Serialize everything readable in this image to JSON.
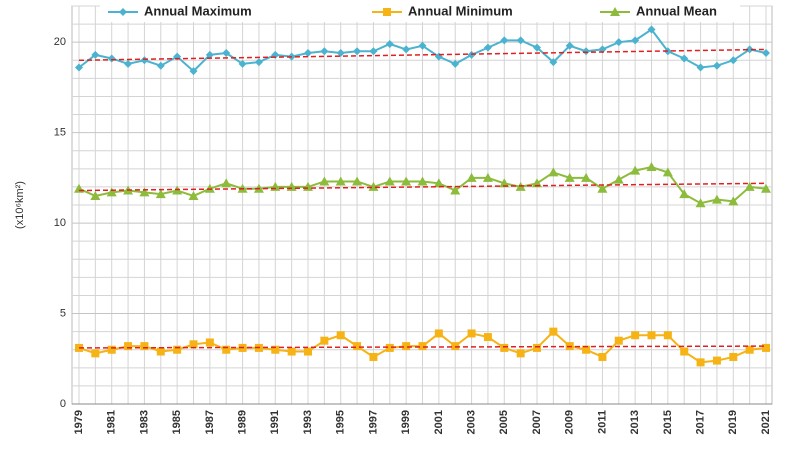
{
  "chart_data": {
    "type": "line",
    "y_label": "(x10⁶km²)",
    "categories": [
      "1979",
      null,
      "1981",
      null,
      "1983",
      null,
      "1985",
      null,
      "1987",
      null,
      "1989",
      null,
      "1991",
      null,
      "1993",
      null,
      "1995",
      null,
      "1997",
      null,
      "1999",
      null,
      "2001",
      null,
      "2003",
      null,
      "2005",
      null,
      "2007",
      null,
      "2009",
      null,
      "2011",
      null,
      "2013",
      null,
      "2015",
      null,
      "2017",
      null,
      "2019",
      null,
      "2021"
    ],
    "series": [
      {
        "name": "Annual Maximum",
        "color": "#4bb3cf",
        "marker": "diamond",
        "values": [
          18.6,
          19.3,
          19.1,
          18.8,
          19.0,
          18.7,
          19.2,
          18.4,
          19.3,
          19.4,
          18.8,
          18.9,
          19.3,
          19.2,
          19.4,
          19.5,
          19.4,
          19.5,
          19.5,
          19.9,
          19.6,
          19.8,
          19.2,
          18.8,
          19.3,
          19.7,
          20.1,
          20.1,
          19.7,
          18.9,
          19.8,
          19.5,
          19.6,
          20.0,
          20.1,
          20.7,
          19.5,
          19.1,
          18.6,
          18.7,
          19.0,
          19.6,
          19.4
        ],
        "trend": [
          19.0,
          19.6
        ]
      },
      {
        "name": "Annual Minimum",
        "color": "#f5b316",
        "marker": "square",
        "values": [
          3.1,
          2.8,
          3.0,
          3.2,
          3.2,
          2.9,
          3.0,
          3.3,
          3.4,
          3.0,
          3.1,
          3.1,
          3.0,
          2.9,
          2.9,
          3.5,
          3.8,
          3.2,
          2.6,
          3.1,
          3.2,
          3.2,
          3.9,
          3.2,
          3.9,
          3.7,
          3.1,
          2.8,
          3.1,
          4.0,
          3.2,
          3.0,
          2.6,
          3.5,
          3.8,
          3.8,
          3.8,
          2.9,
          2.3,
          2.4,
          2.6,
          3.0,
          3.1
        ],
        "trend": [
          3.1,
          3.2
        ]
      },
      {
        "name": "Annual Mean",
        "color": "#8dbb3c",
        "marker": "triangle",
        "values": [
          11.9,
          11.5,
          11.7,
          11.8,
          11.7,
          11.6,
          11.8,
          11.5,
          11.9,
          12.2,
          11.9,
          11.9,
          12.0,
          12.0,
          12.0,
          12.3,
          12.3,
          12.3,
          12.0,
          12.3,
          12.3,
          12.3,
          12.2,
          11.8,
          12.5,
          12.5,
          12.2,
          12.0,
          12.2,
          12.8,
          12.5,
          12.5,
          11.9,
          12.4,
          12.9,
          13.1,
          12.8,
          11.6,
          11.1,
          11.3,
          11.2,
          12.0,
          11.9
        ],
        "trend": [
          11.8,
          12.2
        ]
      }
    ],
    "trend_color": "#e02020",
    "ylim": [
      0,
      22
    ],
    "yticks": [
      0,
      5,
      10,
      15,
      20
    ],
    "yminor": [
      1,
      2,
      3,
      4,
      6,
      7,
      8,
      9,
      11,
      12,
      13,
      14,
      16,
      17,
      18,
      19,
      21,
      22
    ],
    "grid": true,
    "legend": "top"
  }
}
